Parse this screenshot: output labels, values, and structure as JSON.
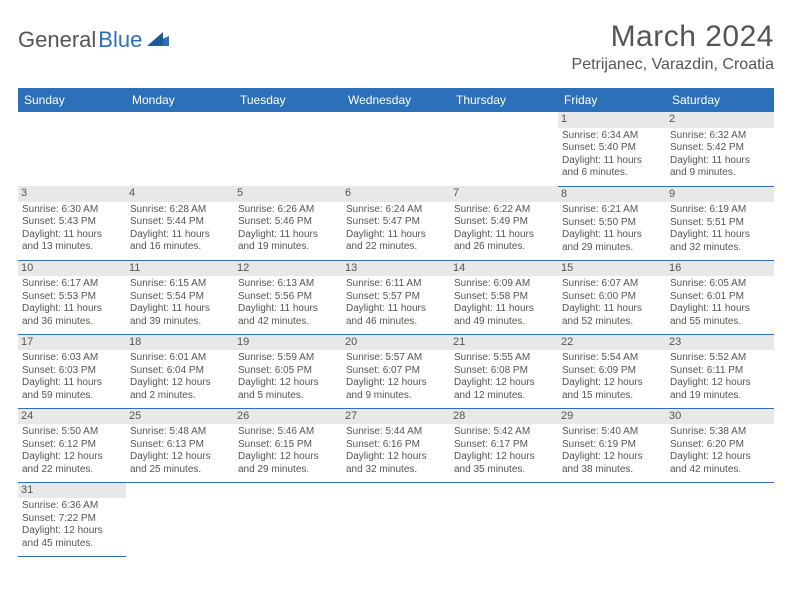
{
  "logo": {
    "text1": "General",
    "text2": "Blue"
  },
  "title": "March 2024",
  "location": "Petrijanec, Varazdin, Croatia",
  "colors": {
    "header_bg": "#2b70b8",
    "header_fg": "#ffffff",
    "daynum_bg": "#e8e8e8",
    "border": "#2b70b8",
    "text": "#555555"
  },
  "weekdays": [
    "Sunday",
    "Monday",
    "Tuesday",
    "Wednesday",
    "Thursday",
    "Friday",
    "Saturday"
  ],
  "weeks": [
    [
      null,
      null,
      null,
      null,
      null,
      {
        "n": "1",
        "sr": "Sunrise: 6:34 AM",
        "ss": "Sunset: 5:40 PM",
        "d1": "Daylight: 11 hours",
        "d2": "and 6 minutes."
      },
      {
        "n": "2",
        "sr": "Sunrise: 6:32 AM",
        "ss": "Sunset: 5:42 PM",
        "d1": "Daylight: 11 hours",
        "d2": "and 9 minutes."
      }
    ],
    [
      {
        "n": "3",
        "sr": "Sunrise: 6:30 AM",
        "ss": "Sunset: 5:43 PM",
        "d1": "Daylight: 11 hours",
        "d2": "and 13 minutes."
      },
      {
        "n": "4",
        "sr": "Sunrise: 6:28 AM",
        "ss": "Sunset: 5:44 PM",
        "d1": "Daylight: 11 hours",
        "d2": "and 16 minutes."
      },
      {
        "n": "5",
        "sr": "Sunrise: 6:26 AM",
        "ss": "Sunset: 5:46 PM",
        "d1": "Daylight: 11 hours",
        "d2": "and 19 minutes."
      },
      {
        "n": "6",
        "sr": "Sunrise: 6:24 AM",
        "ss": "Sunset: 5:47 PM",
        "d1": "Daylight: 11 hours",
        "d2": "and 22 minutes."
      },
      {
        "n": "7",
        "sr": "Sunrise: 6:22 AM",
        "ss": "Sunset: 5:49 PM",
        "d1": "Daylight: 11 hours",
        "d2": "and 26 minutes."
      },
      {
        "n": "8",
        "sr": "Sunrise: 6:21 AM",
        "ss": "Sunset: 5:50 PM",
        "d1": "Daylight: 11 hours",
        "d2": "and 29 minutes."
      },
      {
        "n": "9",
        "sr": "Sunrise: 6:19 AM",
        "ss": "Sunset: 5:51 PM",
        "d1": "Daylight: 11 hours",
        "d2": "and 32 minutes."
      }
    ],
    [
      {
        "n": "10",
        "sr": "Sunrise: 6:17 AM",
        "ss": "Sunset: 5:53 PM",
        "d1": "Daylight: 11 hours",
        "d2": "and 36 minutes."
      },
      {
        "n": "11",
        "sr": "Sunrise: 6:15 AM",
        "ss": "Sunset: 5:54 PM",
        "d1": "Daylight: 11 hours",
        "d2": "and 39 minutes."
      },
      {
        "n": "12",
        "sr": "Sunrise: 6:13 AM",
        "ss": "Sunset: 5:56 PM",
        "d1": "Daylight: 11 hours",
        "d2": "and 42 minutes."
      },
      {
        "n": "13",
        "sr": "Sunrise: 6:11 AM",
        "ss": "Sunset: 5:57 PM",
        "d1": "Daylight: 11 hours",
        "d2": "and 46 minutes."
      },
      {
        "n": "14",
        "sr": "Sunrise: 6:09 AM",
        "ss": "Sunset: 5:58 PM",
        "d1": "Daylight: 11 hours",
        "d2": "and 49 minutes."
      },
      {
        "n": "15",
        "sr": "Sunrise: 6:07 AM",
        "ss": "Sunset: 6:00 PM",
        "d1": "Daylight: 11 hours",
        "d2": "and 52 minutes."
      },
      {
        "n": "16",
        "sr": "Sunrise: 6:05 AM",
        "ss": "Sunset: 6:01 PM",
        "d1": "Daylight: 11 hours",
        "d2": "and 55 minutes."
      }
    ],
    [
      {
        "n": "17",
        "sr": "Sunrise: 6:03 AM",
        "ss": "Sunset: 6:03 PM",
        "d1": "Daylight: 11 hours",
        "d2": "and 59 minutes."
      },
      {
        "n": "18",
        "sr": "Sunrise: 6:01 AM",
        "ss": "Sunset: 6:04 PM",
        "d1": "Daylight: 12 hours",
        "d2": "and 2 minutes."
      },
      {
        "n": "19",
        "sr": "Sunrise: 5:59 AM",
        "ss": "Sunset: 6:05 PM",
        "d1": "Daylight: 12 hours",
        "d2": "and 5 minutes."
      },
      {
        "n": "20",
        "sr": "Sunrise: 5:57 AM",
        "ss": "Sunset: 6:07 PM",
        "d1": "Daylight: 12 hours",
        "d2": "and 9 minutes."
      },
      {
        "n": "21",
        "sr": "Sunrise: 5:55 AM",
        "ss": "Sunset: 6:08 PM",
        "d1": "Daylight: 12 hours",
        "d2": "and 12 minutes."
      },
      {
        "n": "22",
        "sr": "Sunrise: 5:54 AM",
        "ss": "Sunset: 6:09 PM",
        "d1": "Daylight: 12 hours",
        "d2": "and 15 minutes."
      },
      {
        "n": "23",
        "sr": "Sunrise: 5:52 AM",
        "ss": "Sunset: 6:11 PM",
        "d1": "Daylight: 12 hours",
        "d2": "and 19 minutes."
      }
    ],
    [
      {
        "n": "24",
        "sr": "Sunrise: 5:50 AM",
        "ss": "Sunset: 6:12 PM",
        "d1": "Daylight: 12 hours",
        "d2": "and 22 minutes."
      },
      {
        "n": "25",
        "sr": "Sunrise: 5:48 AM",
        "ss": "Sunset: 6:13 PM",
        "d1": "Daylight: 12 hours",
        "d2": "and 25 minutes."
      },
      {
        "n": "26",
        "sr": "Sunrise: 5:46 AM",
        "ss": "Sunset: 6:15 PM",
        "d1": "Daylight: 12 hours",
        "d2": "and 29 minutes."
      },
      {
        "n": "27",
        "sr": "Sunrise: 5:44 AM",
        "ss": "Sunset: 6:16 PM",
        "d1": "Daylight: 12 hours",
        "d2": "and 32 minutes."
      },
      {
        "n": "28",
        "sr": "Sunrise: 5:42 AM",
        "ss": "Sunset: 6:17 PM",
        "d1": "Daylight: 12 hours",
        "d2": "and 35 minutes."
      },
      {
        "n": "29",
        "sr": "Sunrise: 5:40 AM",
        "ss": "Sunset: 6:19 PM",
        "d1": "Daylight: 12 hours",
        "d2": "and 38 minutes."
      },
      {
        "n": "30",
        "sr": "Sunrise: 5:38 AM",
        "ss": "Sunset: 6:20 PM",
        "d1": "Daylight: 12 hours",
        "d2": "and 42 minutes."
      }
    ],
    [
      {
        "n": "31",
        "sr": "Sunrise: 6:36 AM",
        "ss": "Sunset: 7:22 PM",
        "d1": "Daylight: 12 hours",
        "d2": "and 45 minutes."
      },
      null,
      null,
      null,
      null,
      null,
      null
    ]
  ]
}
